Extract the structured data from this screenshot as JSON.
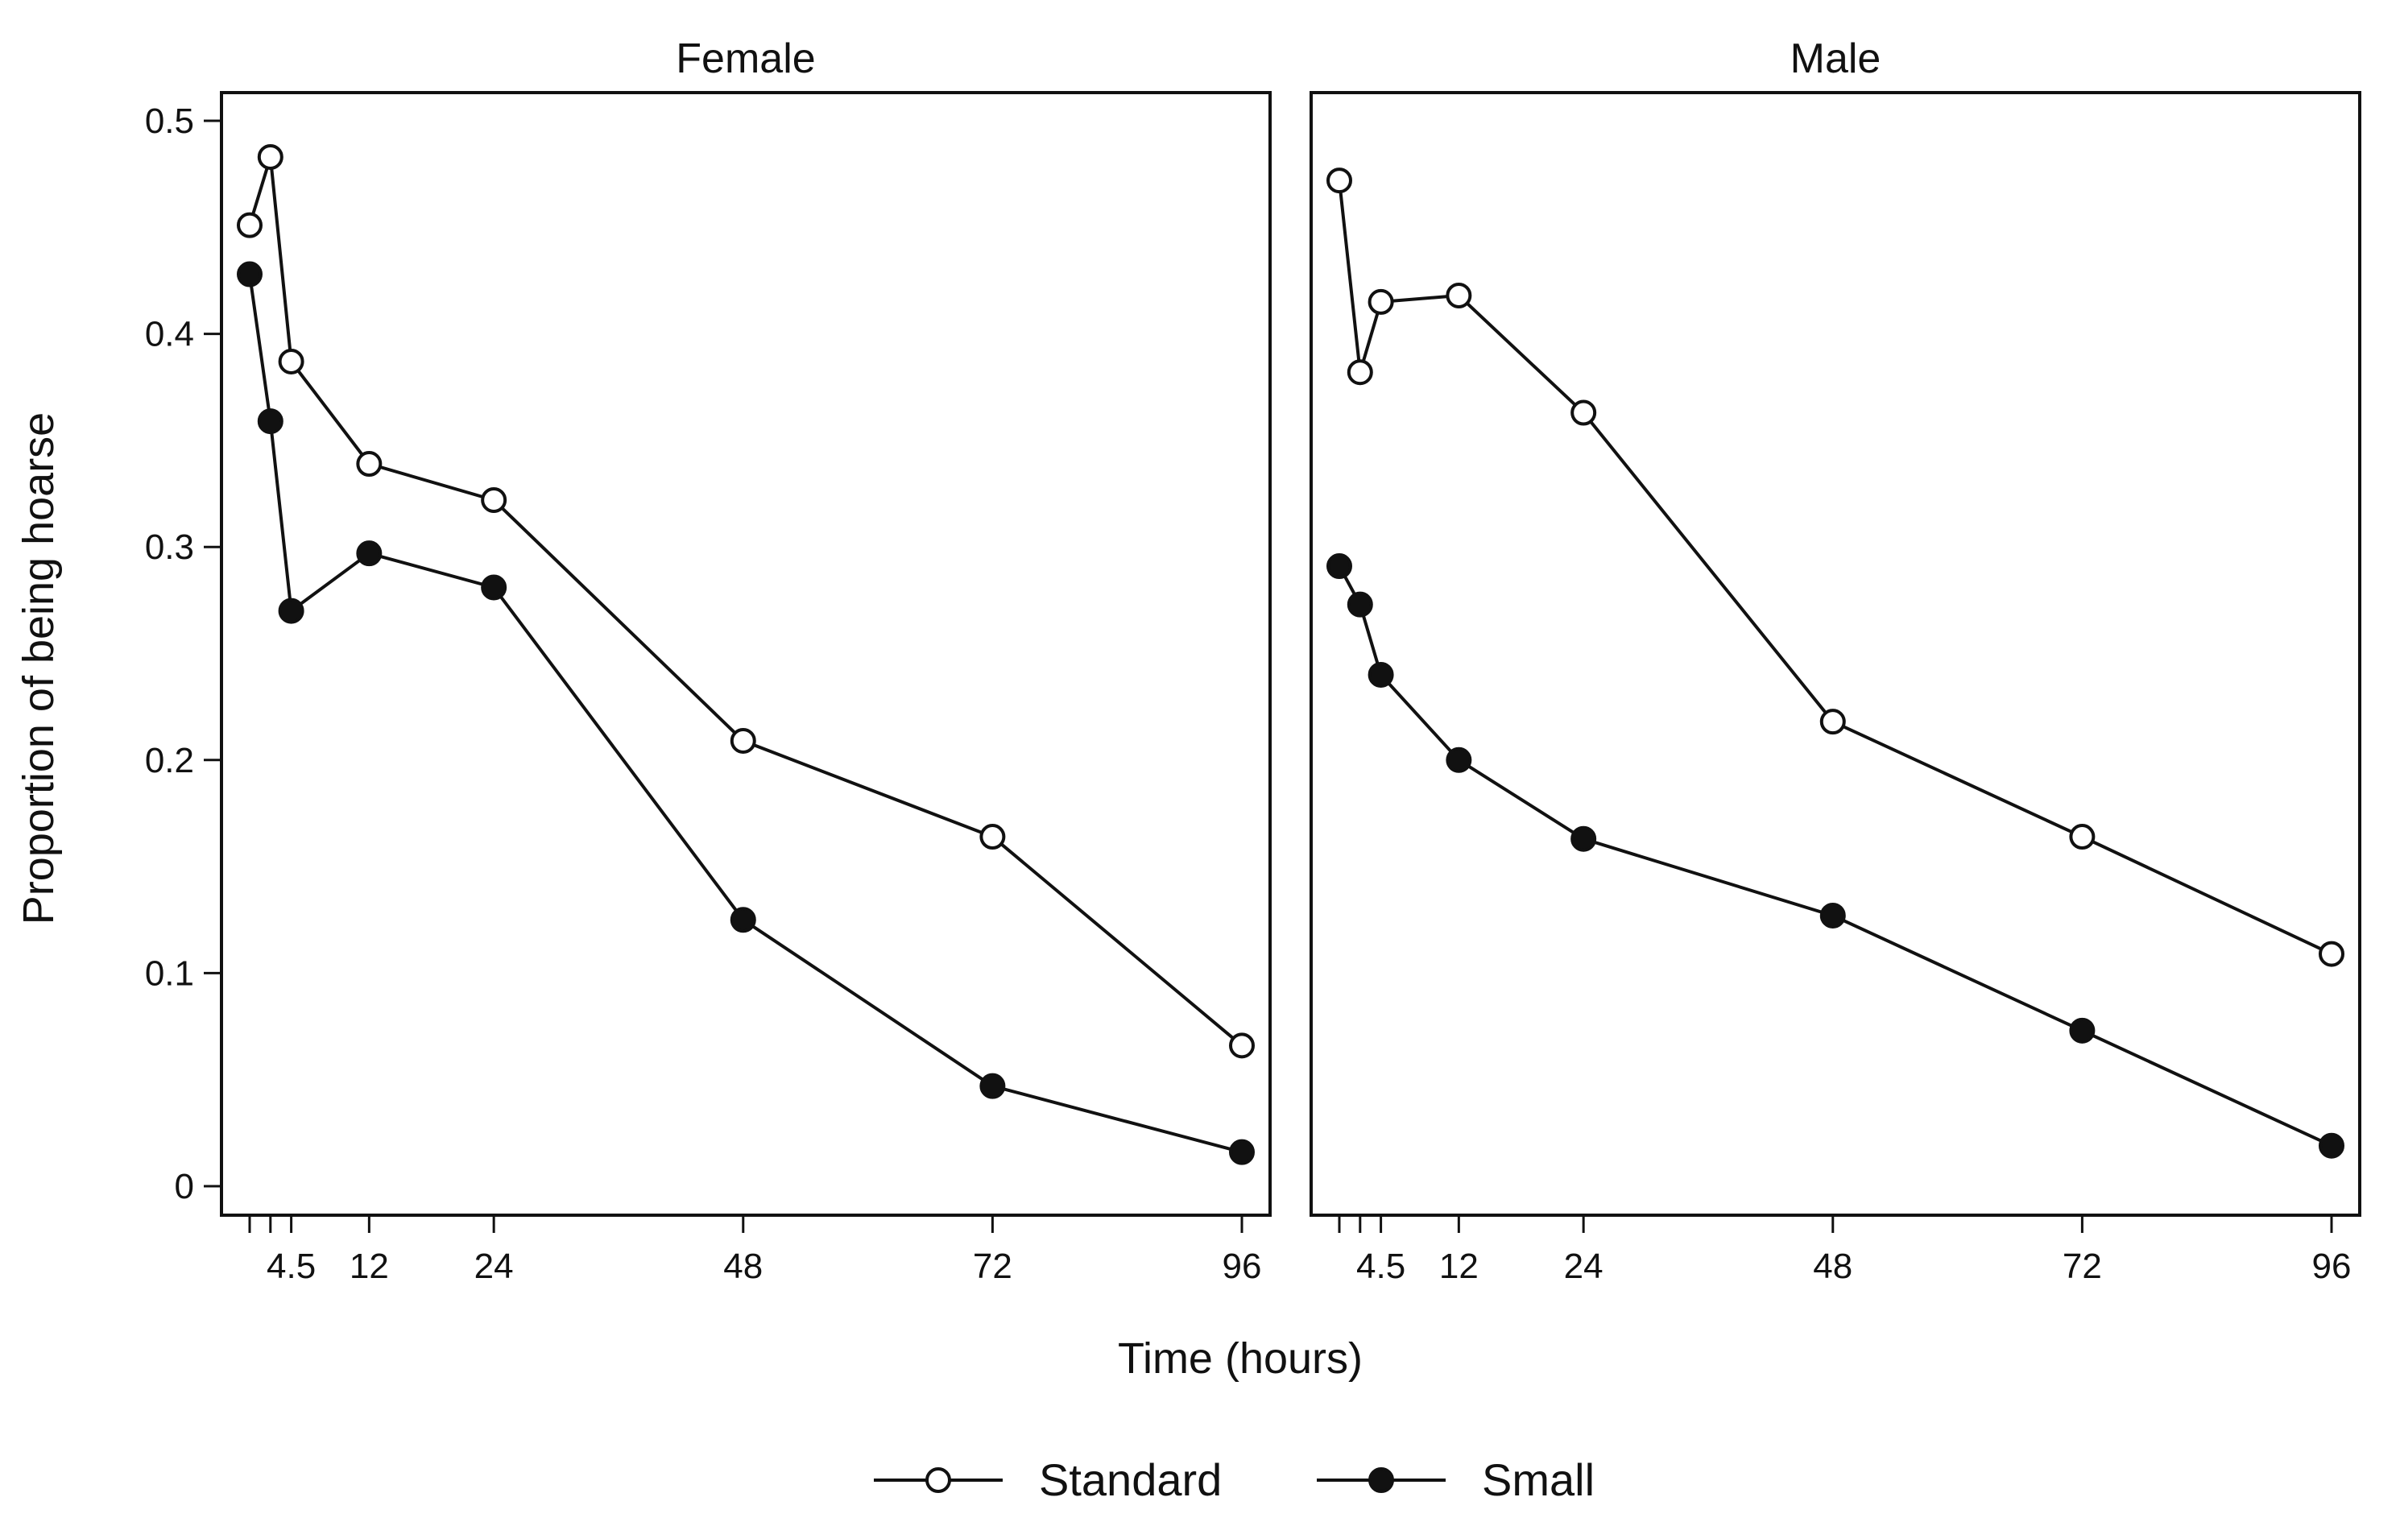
{
  "chart_data": {
    "type": "line",
    "ylabel": "Proportion of being hoarse",
    "xlabel": "Time (hours)",
    "ylim": [
      0,
      0.5
    ],
    "y_ticks": [
      0,
      0.1,
      0.2,
      0.3,
      0.4,
      0.5
    ],
    "y_tick_labels": [
      "0",
      "0.1",
      "0.2",
      "0.3",
      "0.4",
      "0.5"
    ],
    "x_ticks": [
      0.5,
      2.5,
      4.5,
      12,
      24,
      48,
      72,
      96
    ],
    "x_tick_labels": [
      "",
      "",
      "4.5",
      "12",
      "24",
      "48",
      "72",
      "96"
    ],
    "xlim": [
      -2.5,
      99.5
    ],
    "x": [
      0.5,
      2.5,
      4.5,
      12,
      24,
      48,
      72,
      96
    ],
    "legend": {
      "position": "bottom",
      "entries": [
        {
          "name": "Standard",
          "marker": "open-circle"
        },
        {
          "name": "Small",
          "marker": "filled-circle"
        }
      ]
    },
    "panels": [
      {
        "title": "Female",
        "series": [
          {
            "name": "Standard",
            "values": [
              0.451,
              0.483,
              0.387,
              0.339,
              0.322,
              0.209,
              0.164,
              0.066
            ]
          },
          {
            "name": "Small",
            "values": [
              0.428,
              0.359,
              0.27,
              0.297,
              0.281,
              0.125,
              0.047,
              0.016
            ]
          }
        ]
      },
      {
        "title": "Male",
        "series": [
          {
            "name": "Standard",
            "values": [
              0.472,
              0.382,
              0.415,
              0.418,
              0.363,
              0.218,
              0.164,
              0.109
            ]
          },
          {
            "name": "Small",
            "values": [
              0.291,
              0.273,
              0.24,
              0.2,
              0.163,
              0.127,
              0.073,
              0.019
            ]
          }
        ]
      }
    ]
  }
}
